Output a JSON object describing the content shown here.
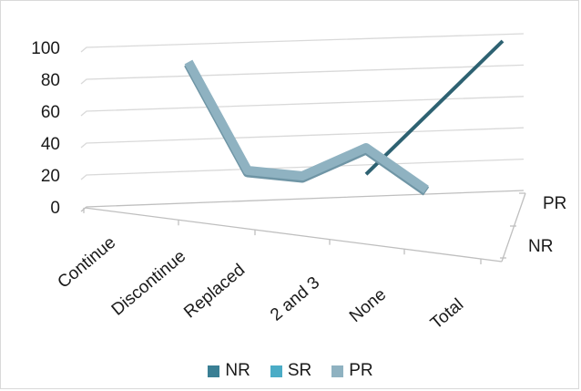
{
  "chart_data": {
    "type": "line",
    "style": "3d-line",
    "categories": [
      "Continue",
      "Discontinue",
      "Replaced",
      "2 and 3",
      "None",
      "Total"
    ],
    "series": [
      {
        "name": "NR",
        "values": [
          null,
          null,
          null,
          null,
          13,
          100
        ],
        "color": "#3a7f94"
      },
      {
        "name": "SR",
        "values": [
          null,
          null,
          null,
          null,
          null,
          null
        ],
        "color": "#4bacc6"
      },
      {
        "name": "PR",
        "values": [
          null,
          90,
          24,
          22,
          40,
          13
        ],
        "color": "#8fb2c1"
      }
    ],
    "depth_labels": [
      "NR",
      "PR"
    ],
    "yticks": [
      "0",
      "20",
      "40",
      "60",
      "80",
      "100"
    ],
    "ylim": [
      0,
      100
    ],
    "grid": true,
    "legend_position": "bottom"
  }
}
